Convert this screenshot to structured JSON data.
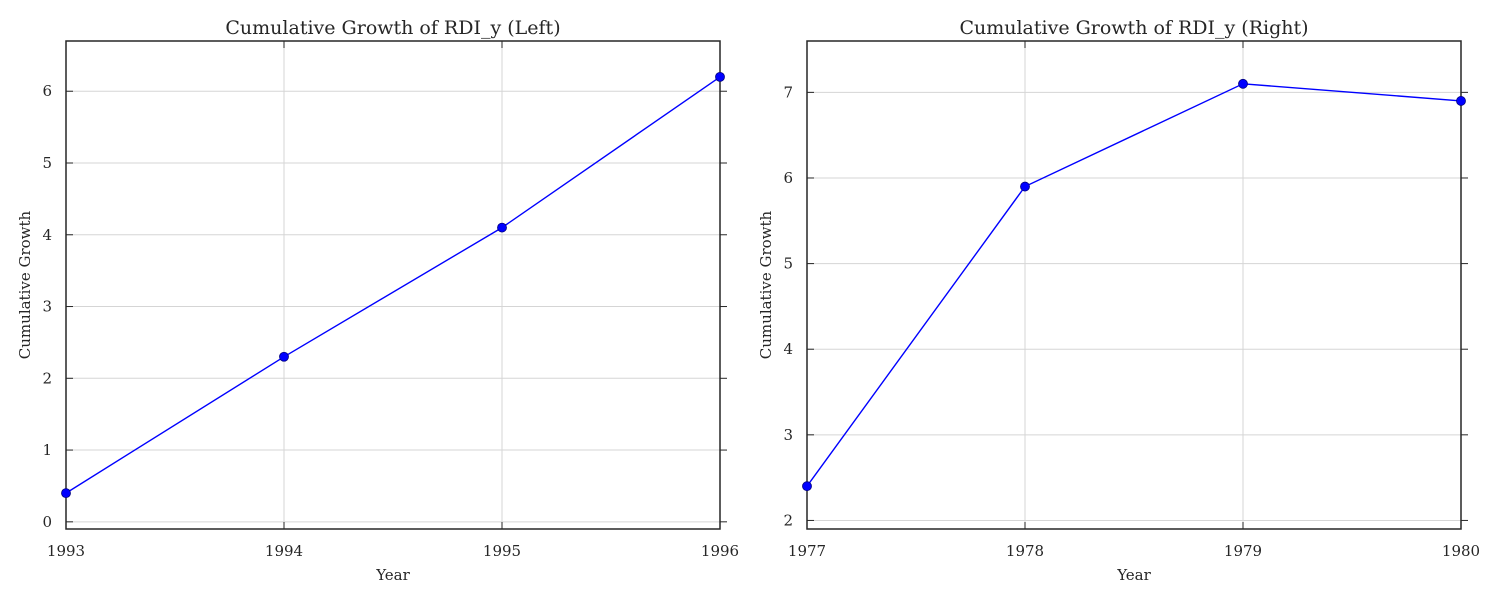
{
  "chart_data": [
    {
      "type": "line",
      "title": "Cumulative Growth of RDI_y (Left)",
      "xlabel": "Year",
      "ylabel": "Cumulative Growth",
      "xlim": [
        1993,
        1996
      ],
      "ylim": [
        -0.1,
        6.7
      ],
      "x_ticks": [
        1993,
        1994,
        1995,
        1996
      ],
      "y_ticks": [
        0,
        1,
        2,
        3,
        4,
        5,
        6
      ],
      "grid": true,
      "series": [
        {
          "color": "#0000ff",
          "marker": "circle",
          "x": [
            1993,
            1994,
            1995,
            1996
          ],
          "y": [
            0.4,
            2.3,
            4.1,
            6.2
          ]
        }
      ]
    },
    {
      "type": "line",
      "title": "Cumulative Growth of RDI_y (Right)",
      "xlabel": "Year",
      "ylabel": "Cumulative Growth",
      "xlim": [
        1977,
        1980
      ],
      "ylim": [
        1.9,
        7.6
      ],
      "x_ticks": [
        1977,
        1978,
        1979,
        1980
      ],
      "y_ticks": [
        2,
        3,
        4,
        5,
        6,
        7
      ],
      "grid": true,
      "series": [
        {
          "color": "#0000ff",
          "marker": "circle",
          "x": [
            1977,
            1978,
            1979,
            1980
          ],
          "y": [
            2.4,
            5.9,
            7.1,
            6.9
          ]
        }
      ]
    }
  ]
}
